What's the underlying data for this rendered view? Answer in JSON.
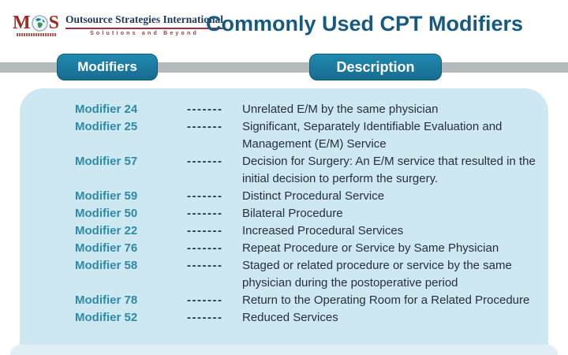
{
  "logo": {
    "mark_m": "M",
    "mark_s": "S",
    "company": "Outsource Strategies International",
    "tagline": "Solutions and Beyond"
  },
  "title": "Commonly Used CPT Modifiers",
  "columns": {
    "modifiers": "Modifiers",
    "description": "Description"
  },
  "separator": "-------",
  "rows": [
    {
      "modifier": "Modifier 24",
      "description": "Unrelated E/M by the same physician"
    },
    {
      "modifier": "Modifier 25",
      "description": "Significant, Separately Identifiable Evaluation and Management (E/M) Service"
    },
    {
      "modifier": "Modifier 57",
      "description": "Decision for Surgery: An E/M service that resulted in the initial decision to perform the surgery."
    },
    {
      "modifier": "Modifier 59",
      "description": "Distinct Procedural Service"
    },
    {
      "modifier": "Modifier 50",
      "description": "Bilateral Procedure"
    },
    {
      "modifier": "Modifier 22",
      "description": "Increased Procedural Services"
    },
    {
      "modifier": "Modifier 76",
      "description": "Repeat Procedure or Service by Same Physician"
    },
    {
      "modifier": "Modifier 58",
      "description": "Staged or related procedure or service by the same physician during the postoperative period"
    },
    {
      "modifier": "Modifier 78",
      "description": "Return to the Operating Room for a Related Procedure"
    },
    {
      "modifier": "Modifier 52",
      "description": "Reduced Services"
    }
  ],
  "colors": {
    "accent_teal": "#1b7ea4",
    "title_navy": "#175a80",
    "modifier_teal": "#2e8aa8",
    "text_dark": "#272f3a",
    "panel_blue": "#cee8f1",
    "panel_light_strip": "#e0eff5",
    "band_gray": "#b5bbbd",
    "logo_red": "#a02a24"
  }
}
